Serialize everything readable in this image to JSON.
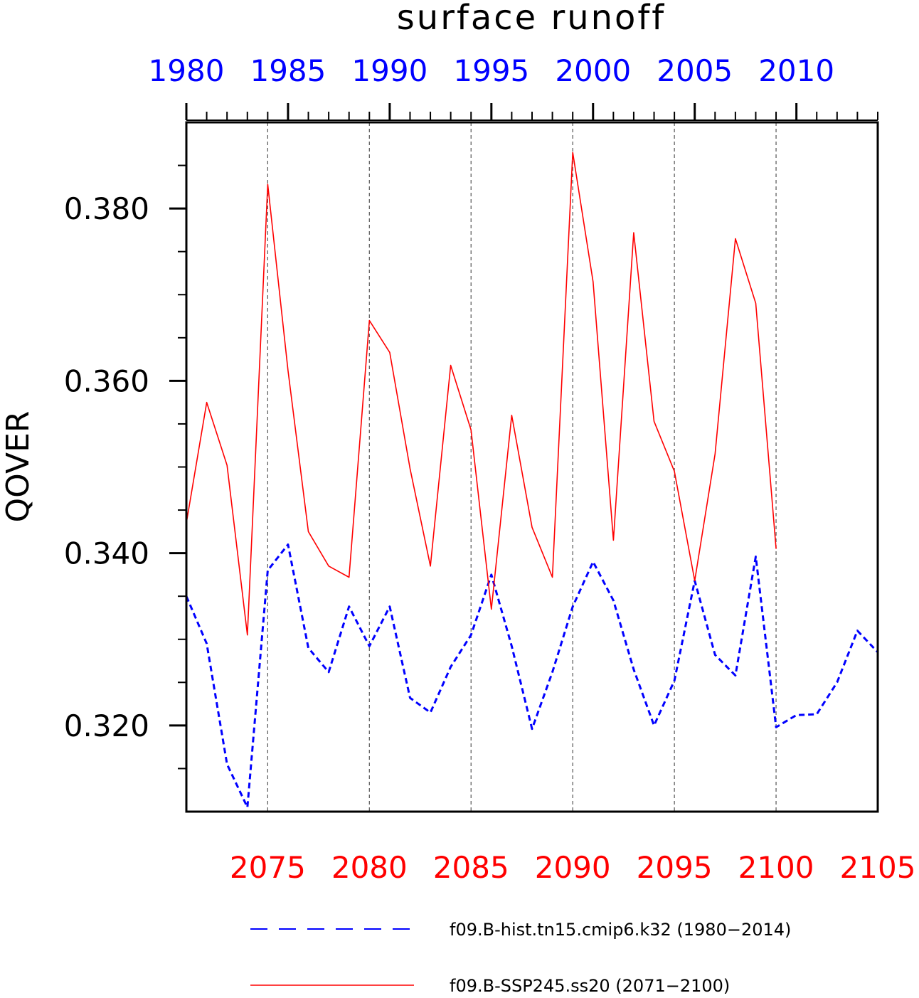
{
  "chart_data": {
    "type": "line",
    "title": "surface runoff",
    "ylabel": "QOVER",
    "ylim": [
      0.31,
      0.39
    ],
    "yticks": [
      0.32,
      0.34,
      0.36,
      0.38
    ],
    "ytick_labels": [
      "0.320",
      "0.340",
      "0.360",
      "0.380"
    ],
    "top_axis": {
      "color": "#0000ff",
      "xlim": [
        1980,
        2014
      ],
      "ticks": [
        1980,
        1985,
        1990,
        1995,
        2000,
        2005,
        2010
      ],
      "tick_labels": [
        "1980",
        "1985",
        "1990",
        "1995",
        "2000",
        "2005",
        "2010"
      ]
    },
    "bottom_axis": {
      "color": "#ff0000",
      "xlim": [
        2071,
        2105
      ],
      "ticks": [
        2075,
        2080,
        2085,
        2090,
        2095,
        2100,
        2105
      ],
      "tick_labels": [
        "2075",
        "2080",
        "2085",
        "2090",
        "2095",
        "2100",
        "2105"
      ]
    },
    "grid": "vertical dashed at bottom-axis major ticks",
    "series": [
      {
        "name": "f09.B-hist.tn15.cmip6.k32 (1980-2014)",
        "axis": "top",
        "color": "#0000ff",
        "style": "dashed",
        "x": [
          1980,
          1981,
          1982,
          1983,
          1984,
          1985,
          1986,
          1987,
          1988,
          1989,
          1990,
          1991,
          1992,
          1993,
          1994,
          1995,
          1996,
          1997,
          1998,
          1999,
          2000,
          2001,
          2002,
          2003,
          2004,
          2005,
          2006,
          2007,
          2008,
          2009,
          2010,
          2011,
          2012,
          2013,
          2014
        ],
        "values": [
          0.335,
          0.3295,
          0.3155,
          0.3105,
          0.338,
          0.341,
          0.329,
          0.3262,
          0.3338,
          0.3292,
          0.3338,
          0.3232,
          0.3215,
          0.3268,
          0.3305,
          0.3375,
          0.3292,
          0.3196,
          0.3262,
          0.3338,
          0.339,
          0.3345,
          0.3265,
          0.32,
          0.3252,
          0.3368,
          0.3282,
          0.3258,
          0.3396,
          0.3198,
          0.3212,
          0.3213,
          0.325,
          0.331,
          0.3285
        ]
      },
      {
        "name": "f09.B-SSP245.ss20 (2071-2100)",
        "axis": "bottom",
        "color": "#ff0000",
        "style": "solid",
        "x": [
          2071,
          2072,
          2073,
          2074,
          2075,
          2076,
          2077,
          2078,
          2079,
          2080,
          2081,
          2082,
          2083,
          2084,
          2085,
          2086,
          2087,
          2088,
          2089,
          2090,
          2091,
          2092,
          2093,
          2094,
          2095,
          2096,
          2097,
          2098,
          2099,
          2100
        ],
        "values": [
          0.3435,
          0.3575,
          0.3502,
          0.3305,
          0.3828,
          0.3612,
          0.3425,
          0.3385,
          0.3372,
          0.367,
          0.3633,
          0.3498,
          0.3385,
          0.3618,
          0.3543,
          0.3335,
          0.356,
          0.343,
          0.3372,
          0.3865,
          0.3715,
          0.3415,
          0.3772,
          0.3553,
          0.3495,
          0.3368,
          0.3515,
          0.3765,
          0.369,
          0.3405
        ]
      }
    ],
    "legend": {
      "position": "bottom",
      "items": [
        "f09.B-hist.tn15.cmip6.k32 (1980−2014)",
        "f09.B-SSP245.ss20 (2071−2100)"
      ]
    }
  }
}
